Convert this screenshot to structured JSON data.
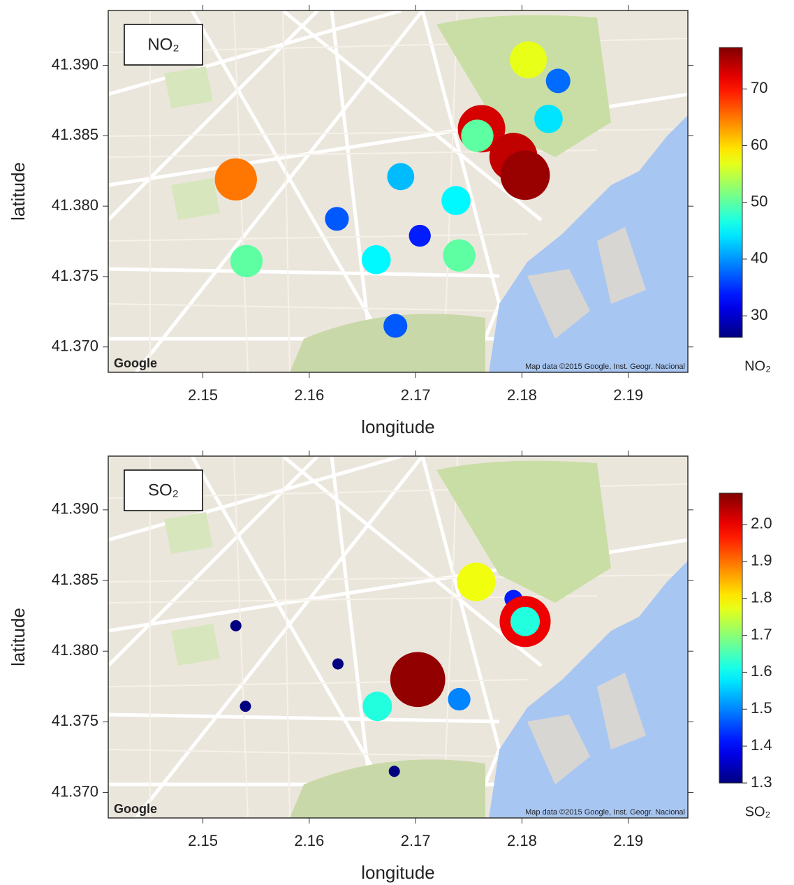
{
  "chart_data": [
    {
      "type": "scatter",
      "title": "NO₂",
      "xlabel": "longitude",
      "ylabel": "latitude",
      "colorbar_label": "NO₂",
      "attribution": "Map data ©2015 Google, Inst. Geogr. Nacional",
      "logo": "Google",
      "colormap": "jet",
      "xlim": [
        2.1411,
        2.1956
      ],
      "ylim": [
        41.3682,
        41.3939
      ],
      "xticks": [
        2.15,
        2.16,
        2.17,
        2.18,
        2.19
      ],
      "yticks": [
        {
          "value": 41.37,
          "label": "41.370"
        },
        {
          "value": 41.375,
          "label": "41.375"
        },
        {
          "value": 41.38,
          "label": "41.380"
        },
        {
          "value": 41.385,
          "label": "41.385"
        },
        {
          "value": 41.39,
          "label": "41.390"
        }
      ],
      "clim": [
        26.2,
        77.3
      ],
      "cticks": [
        30,
        40,
        50,
        60,
        70
      ],
      "x": [
        2.1806,
        2.1834,
        2.1825,
        2.1762,
        2.1758,
        2.1792,
        2.1803,
        2.1531,
        2.1686,
        2.1738,
        2.1626,
        2.1704,
        2.1663,
        2.1741,
        2.1541,
        2.1681
      ],
      "y": [
        41.3904,
        41.3889,
        41.3862,
        41.3855,
        41.385,
        41.3835,
        41.3822,
        41.3819,
        41.3821,
        41.3804,
        41.3791,
        41.3779,
        41.3762,
        41.3765,
        41.3761,
        41.3715
      ],
      "values": [
        57,
        38,
        44,
        73,
        50,
        74,
        76,
        65,
        42,
        45,
        37,
        34,
        45,
        50,
        50,
        37
      ]
    },
    {
      "type": "scatter",
      "title": "SO₂",
      "xlabel": "longitude",
      "ylabel": "latitude",
      "colorbar_label": "SO₂",
      "attribution": "Map data ©2015 Google, Inst. Geogr. Nacional",
      "logo": "Google",
      "colormap": "jet",
      "xlim": [
        2.1411,
        2.1956
      ],
      "ylim": [
        41.3682,
        41.3938
      ],
      "xticks": [
        2.15,
        2.16,
        2.17,
        2.18,
        2.19
      ],
      "yticks": [
        {
          "value": 41.37,
          "label": "41.370"
        },
        {
          "value": 41.375,
          "label": "41.375"
        },
        {
          "value": 41.38,
          "label": "41.380"
        },
        {
          "value": 41.385,
          "label": "41.385"
        },
        {
          "value": 41.39,
          "label": "41.390"
        }
      ],
      "clim": [
        1.3,
        2.085
      ],
      "cticks": [
        1.3,
        1.4,
        1.5,
        1.6,
        1.7,
        1.8,
        1.9,
        {
          "value": 2,
          "label": "2.0"
        }
      ],
      "x": [
        2.1757,
        2.1792,
        2.1803,
        2.1803,
        2.1531,
        2.1627,
        2.1702,
        2.1741,
        2.1664,
        2.154,
        2.168
      ],
      "y": [
        41.3849,
        41.3837,
        41.3821,
        41.3821,
        41.3818,
        41.3791,
        41.378,
        41.3766,
        41.3761,
        41.3761,
        41.3715
      ],
      "values": [
        1.78,
        1.42,
        2.0,
        1.62,
        1.3,
        1.3,
        2.07,
        1.5,
        1.62,
        1.3,
        1.3
      ]
    }
  ]
}
